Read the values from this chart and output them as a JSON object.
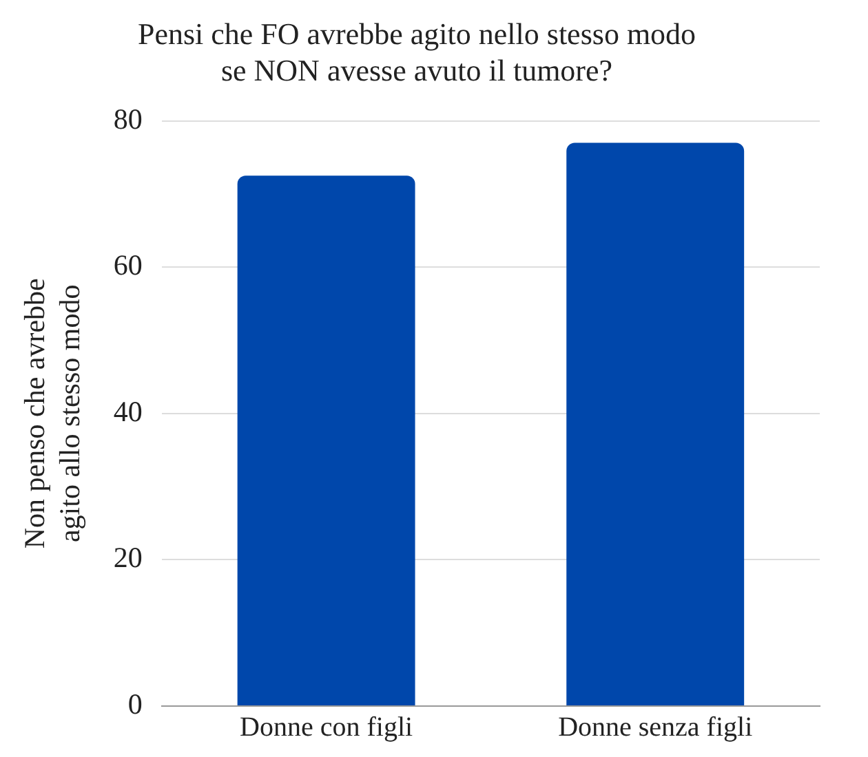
{
  "chart_data": {
    "type": "bar",
    "title": "Pensi che FO avrebbe agito nello stesso modo se NON avesse avuto il tumore?",
    "ylabel": "Non penso che avrebbe agito allo stesso modo",
    "categories": [
      "Donne con figli",
      "Donne senza figli"
    ],
    "values": [
      72.5,
      77
    ],
    "color": "#0047ab",
    "ylim": [
      0,
      80
    ],
    "yticks": [
      0,
      20,
      40,
      60,
      80
    ],
    "grid": "y"
  }
}
